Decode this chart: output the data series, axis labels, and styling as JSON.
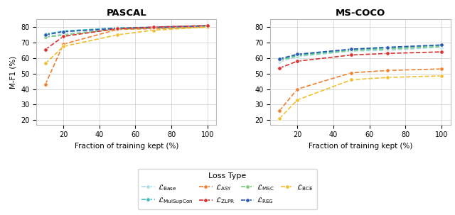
{
  "x": [
    10,
    20,
    50,
    70,
    100
  ],
  "pascal": {
    "Base": [
      74.0,
      75.5,
      79.0,
      79.5,
      80.2
    ],
    "MSC": [
      73.5,
      74.8,
      78.8,
      79.2,
      80.0
    ],
    "MulSupCon": [
      75.5,
      77.5,
      79.5,
      80.0,
      81.0
    ],
    "REG": [
      75.0,
      77.0,
      79.2,
      79.8,
      80.8
    ],
    "ASY": [
      43.0,
      69.0,
      78.5,
      79.0,
      80.0
    ],
    "BCE": [
      56.5,
      67.5,
      75.0,
      78.0,
      80.0
    ],
    "ZLPR": [
      65.5,
      74.0,
      79.0,
      80.0,
      81.0
    ]
  },
  "coco": {
    "Base": [
      57.5,
      61.0,
      64.5,
      65.0,
      67.0
    ],
    "MSC": [
      58.5,
      61.5,
      65.0,
      65.8,
      67.5
    ],
    "MulSupCon": [
      59.0,
      62.0,
      65.5,
      66.5,
      68.3
    ],
    "REG": [
      59.5,
      62.5,
      65.8,
      67.0,
      68.5
    ],
    "ASY": [
      26.0,
      40.0,
      50.5,
      52.0,
      53.0
    ],
    "BCE": [
      21.0,
      33.0,
      46.0,
      47.5,
      48.5
    ],
    "ZLPR": [
      53.5,
      58.0,
      62.0,
      63.0,
      64.0
    ]
  },
  "colors": {
    "Base": "#aadce8",
    "MSC": "#7ec87e",
    "MulSupCon": "#3bbcbc",
    "REG": "#2a5aaf",
    "ASY": "#f08030",
    "BCE": "#f0c030",
    "ZLPR": "#d93030"
  },
  "labels": {
    "Base": "$\\mathcal{L}_{\\mathrm{Base}}$",
    "MSC": "$\\mathcal{L}_{\\mathrm{MSC}}$",
    "MulSupCon": "$\\mathcal{L}_{\\mathrm{MulSupCon}}$",
    "REG": "$\\mathcal{L}_{\\mathrm{REG}}$",
    "ASY": "$\\mathcal{L}_{\\mathrm{ASY}}$",
    "BCE": "$\\mathcal{L}_{\\mathrm{BCE}}$",
    "ZLPR": "$\\mathcal{L}_{\\mathrm{ZLPR}}$"
  },
  "ylim": [
    17,
    85
  ],
  "yticks": [
    20,
    30,
    40,
    50,
    60,
    70,
    80
  ],
  "xticks": [
    20,
    40,
    60,
    80,
    100
  ],
  "xlabel": "Fraction of training kept (%)",
  "ylabel": "M-F1 (%)",
  "title_pascal": "PASCAL",
  "title_coco": "MS-COCO",
  "legend_title": "Loss Type",
  "legend_row1": [
    "Base",
    "MulSupCon",
    "ASY",
    "ZLPR"
  ],
  "legend_row2": [
    "MSC",
    "REG",
    "BCE"
  ]
}
